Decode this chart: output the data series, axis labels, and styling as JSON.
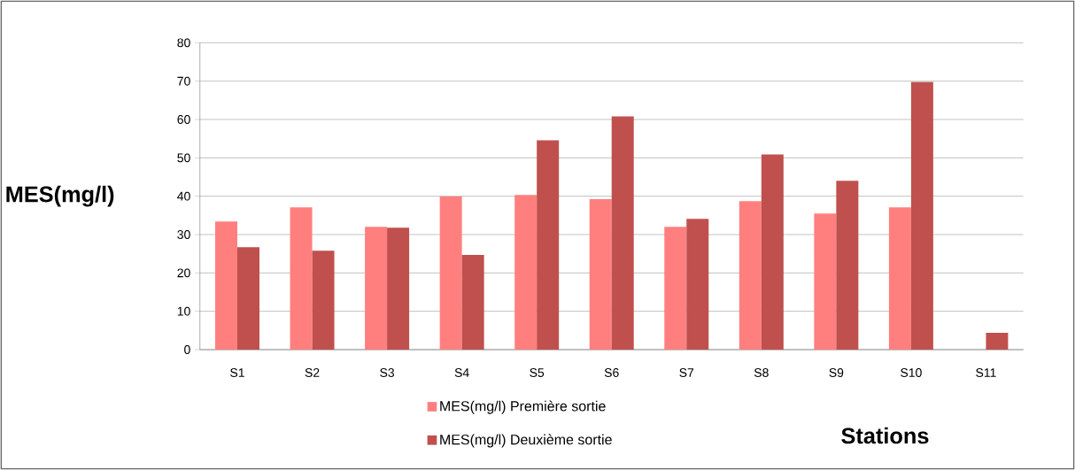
{
  "chart_data": {
    "type": "bar",
    "ylabel": "MES(mg/l)",
    "xlabel": "Stations",
    "categories": [
      "S1",
      "S2",
      "S3",
      "S4",
      "S5",
      "S6",
      "S7",
      "S8",
      "S9",
      "S10",
      "S11"
    ],
    "series": [
      {
        "name": "MES(mg/l) Première sortie",
        "color": "#ff7f7f",
        "values": [
          33.4,
          37.1,
          32.0,
          39.9,
          40.3,
          39.2,
          32.0,
          38.7,
          35.5,
          37.1,
          null
        ]
      },
      {
        "name": "MES(mg/l) Deuxième sortie",
        "color": "#c0504d",
        "values": [
          26.7,
          25.8,
          31.8,
          24.7,
          54.6,
          60.8,
          34.1,
          50.9,
          44.0,
          69.8,
          4.4
        ]
      }
    ],
    "ylim": [
      0,
      80
    ],
    "yticks": [
      0,
      10,
      20,
      30,
      40,
      50,
      60,
      70,
      80
    ],
    "grid": "y",
    "legend": "bottom"
  }
}
